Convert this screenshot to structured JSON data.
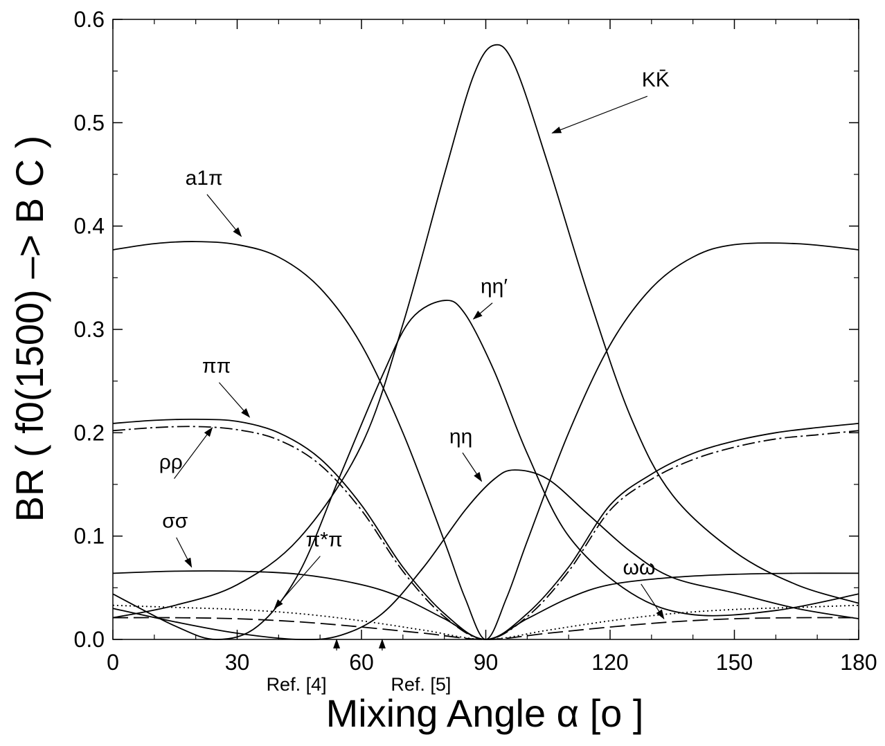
{
  "chart_data": {
    "type": "line",
    "xlabel": "Mixing Angle α [o ]",
    "ylabel": "BR ( f0(1500) –> B C )",
    "xlim": [
      0,
      180
    ],
    "ylim": [
      0,
      0.6
    ],
    "x_ticks": [
      "0",
      "30",
      "60",
      "90",
      "120",
      "150",
      "180"
    ],
    "y_ticks": [
      "0.0",
      "0.1",
      "0.2",
      "0.3",
      "0.4",
      "0.5",
      "0.6"
    ],
    "grid": false,
    "series": [
      {
        "name": "KK̄",
        "style": "solid",
        "points": [
          [
            0,
            0.021
          ],
          [
            15,
            0.033
          ],
          [
            30,
            0.053
          ],
          [
            45,
            0.098
          ],
          [
            60,
            0.188
          ],
          [
            70,
            0.305
          ],
          [
            80,
            0.45
          ],
          [
            87,
            0.545
          ],
          [
            92,
            0.575
          ],
          [
            97,
            0.555
          ],
          [
            105,
            0.46
          ],
          [
            115,
            0.33
          ],
          [
            125,
            0.215
          ],
          [
            135,
            0.14
          ],
          [
            150,
            0.085
          ],
          [
            165,
            0.053
          ],
          [
            180,
            0.035
          ]
        ]
      },
      {
        "name": "a1π",
        "style": "solid",
        "points": [
          [
            0,
            0.377
          ],
          [
            10,
            0.383
          ],
          [
            20,
            0.385
          ],
          [
            30,
            0.382
          ],
          [
            40,
            0.37
          ],
          [
            50,
            0.34
          ],
          [
            60,
            0.285
          ],
          [
            70,
            0.2
          ],
          [
            80,
            0.095
          ],
          [
            85,
            0.04
          ],
          [
            90,
            0
          ],
          [
            95,
            0.04
          ],
          [
            100,
            0.095
          ],
          [
            110,
            0.2
          ],
          [
            120,
            0.285
          ],
          [
            130,
            0.34
          ],
          [
            140,
            0.37
          ],
          [
            150,
            0.382
          ],
          [
            165,
            0.383
          ],
          [
            180,
            0.377
          ]
        ]
      },
      {
        "name": "ηη′",
        "style": "solid",
        "points": [
          [
            0,
            0.044
          ],
          [
            15,
            0.013
          ],
          [
            25,
            0
          ],
          [
            35,
            0.013
          ],
          [
            45,
            0.065
          ],
          [
            55,
            0.16
          ],
          [
            65,
            0.255
          ],
          [
            72,
            0.31
          ],
          [
            80,
            0.328
          ],
          [
            85,
            0.315
          ],
          [
            92,
            0.26
          ],
          [
            100,
            0.18
          ],
          [
            110,
            0.1
          ],
          [
            125,
            0.045
          ],
          [
            140,
            0.024
          ],
          [
            160,
            0.028
          ],
          [
            180,
            0.044
          ]
        ]
      },
      {
        "name": "ηη",
        "style": "solid",
        "points": [
          [
            0,
            0.03
          ],
          [
            15,
            0.017
          ],
          [
            30,
            0.006
          ],
          [
            45,
            0
          ],
          [
            55,
            0.004
          ],
          [
            65,
            0.025
          ],
          [
            75,
            0.07
          ],
          [
            85,
            0.125
          ],
          [
            92,
            0.155
          ],
          [
            97,
            0.164
          ],
          [
            105,
            0.155
          ],
          [
            115,
            0.12
          ],
          [
            125,
            0.085
          ],
          [
            135,
            0.06
          ],
          [
            150,
            0.045
          ],
          [
            165,
            0.03
          ],
          [
            180,
            0.02
          ]
        ]
      },
      {
        "name": "ππ",
        "style": "solid",
        "points": [
          [
            0,
            0.209
          ],
          [
            10,
            0.212
          ],
          [
            20,
            0.213
          ],
          [
            30,
            0.211
          ],
          [
            40,
            0.2
          ],
          [
            50,
            0.175
          ],
          [
            60,
            0.13
          ],
          [
            70,
            0.07
          ],
          [
            80,
            0.025
          ],
          [
            90,
            0
          ],
          [
            100,
            0.025
          ],
          [
            110,
            0.07
          ],
          [
            120,
            0.13
          ],
          [
            130,
            0.16
          ],
          [
            140,
            0.18
          ],
          [
            150,
            0.192
          ],
          [
            160,
            0.2
          ],
          [
            170,
            0.205
          ],
          [
            180,
            0.209
          ]
        ]
      },
      {
        "name": "ρρ",
        "style": "dash-dot",
        "points": [
          [
            0,
            0.202
          ],
          [
            10,
            0.205
          ],
          [
            20,
            0.206
          ],
          [
            30,
            0.203
          ],
          [
            40,
            0.193
          ],
          [
            50,
            0.169
          ],
          [
            60,
            0.125
          ],
          [
            70,
            0.066
          ],
          [
            80,
            0.022
          ],
          [
            90,
            0
          ],
          [
            100,
            0.022
          ],
          [
            110,
            0.066
          ],
          [
            120,
            0.125
          ],
          [
            130,
            0.155
          ],
          [
            140,
            0.174
          ],
          [
            150,
            0.186
          ],
          [
            160,
            0.194
          ],
          [
            170,
            0.198
          ],
          [
            180,
            0.202
          ]
        ]
      },
      {
        "name": "σσ",
        "style": "solid",
        "points": [
          [
            0,
            0.064
          ],
          [
            15,
            0.066
          ],
          [
            30,
            0.066
          ],
          [
            45,
            0.063
          ],
          [
            60,
            0.053
          ],
          [
            70,
            0.04
          ],
          [
            80,
            0.02
          ],
          [
            90,
            0
          ],
          [
            100,
            0.02
          ],
          [
            110,
            0.04
          ],
          [
            120,
            0.053
          ],
          [
            135,
            0.06
          ],
          [
            150,
            0.063
          ],
          [
            165,
            0.064
          ],
          [
            180,
            0.064
          ]
        ]
      },
      {
        "name": "π*π",
        "style": "dotted",
        "points": [
          [
            0,
            0.033
          ],
          [
            15,
            0.031
          ],
          [
            30,
            0.029
          ],
          [
            45,
            0.025
          ],
          [
            60,
            0.018
          ],
          [
            75,
            0.009
          ],
          [
            90,
            0
          ],
          [
            105,
            0.009
          ],
          [
            120,
            0.018
          ],
          [
            135,
            0.025
          ],
          [
            150,
            0.029
          ],
          [
            165,
            0.031
          ],
          [
            180,
            0.033
          ]
        ]
      },
      {
        "name": "ωω",
        "style": "long-dash",
        "points": [
          [
            0,
            0.021
          ],
          [
            15,
            0.021
          ],
          [
            30,
            0.02
          ],
          [
            45,
            0.017
          ],
          [
            60,
            0.012
          ],
          [
            75,
            0.006
          ],
          [
            90,
            0
          ],
          [
            105,
            0.006
          ],
          [
            120,
            0.012
          ],
          [
            135,
            0.017
          ],
          [
            150,
            0.02
          ],
          [
            165,
            0.021
          ],
          [
            180,
            0.021
          ]
        ]
      }
    ],
    "annotations": [
      {
        "text": "KK̄",
        "label_pos": [
          131,
          0.535
        ],
        "arrow_to": [
          106,
          0.49
        ]
      },
      {
        "text": "a1π",
        "label_pos": [
          22,
          0.44
        ],
        "arrow_to": [
          31,
          0.39
        ]
      },
      {
        "text": "ηη′",
        "label_pos": [
          92,
          0.335
        ],
        "arrow_to": [
          87,
          0.31
        ]
      },
      {
        "text": "ηη",
        "label_pos": [
          84,
          0.19
        ],
        "arrow_to": [
          89,
          0.153
        ]
      },
      {
        "text": "ππ",
        "label_pos": [
          25,
          0.258
        ],
        "arrow_to": [
          33,
          0.215
        ]
      },
      {
        "text": "ρρ",
        "label_pos": [
          14,
          0.165
        ],
        "arrow_to": [
          24,
          0.205
        ]
      },
      {
        "text": "σσ",
        "label_pos": [
          15,
          0.108
        ],
        "arrow_to": [
          19,
          0.07
        ]
      },
      {
        "text": "π*π",
        "label_pos": [
          51,
          0.09
        ],
        "arrow_to": [
          39,
          0.03
        ]
      },
      {
        "text": "ωω",
        "label_pos": [
          127,
          0.063
        ],
        "arrow_to": [
          133,
          0.02
        ]
      }
    ],
    "references": [
      {
        "text": "Ref. [4]",
        "x": 54
      },
      {
        "text": "Ref. [5]",
        "x": 65
      }
    ]
  }
}
